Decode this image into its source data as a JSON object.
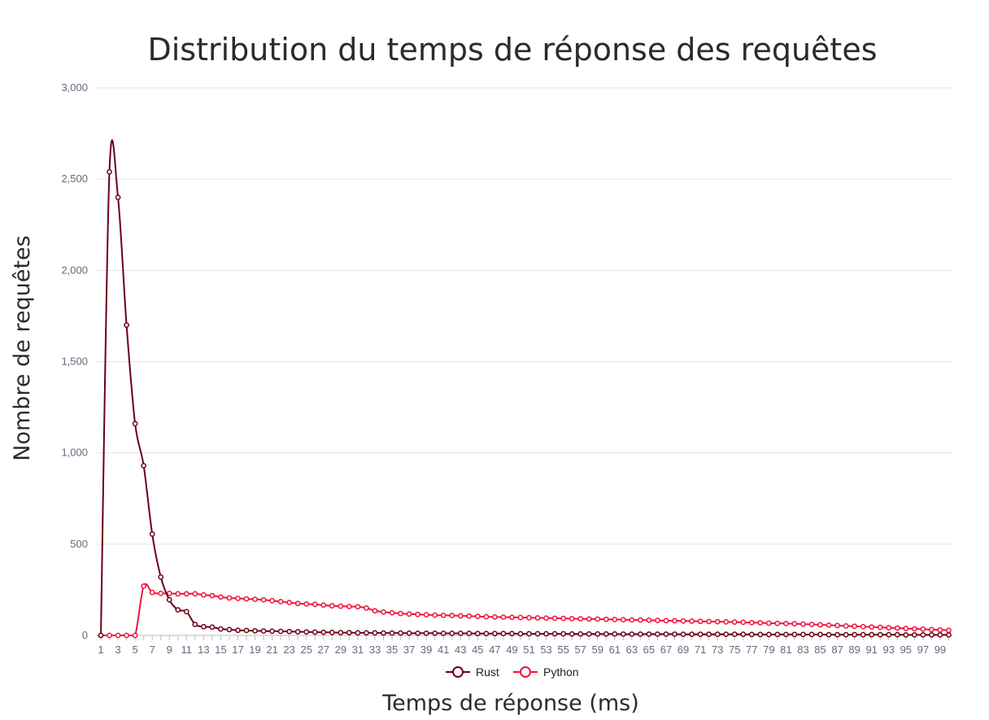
{
  "chart_data": {
    "type": "line",
    "title": "Distribution du temps de réponse des requêtes",
    "xlabel": "Temps de réponse (ms)",
    "ylabel": "Nombre de requêtes",
    "ylim": [
      0,
      3000
    ],
    "yticks": [
      "0",
      "500",
      "1,000",
      "1,500",
      "2,000",
      "2,500",
      "3,000"
    ],
    "x_start": 1,
    "x_end": 100,
    "x_label_every": 2,
    "grid": true,
    "legend_position": "bottom",
    "series": [
      {
        "name": "Rust",
        "color": "#6b0017",
        "values": [
          0,
          2540,
          2400,
          1700,
          1160,
          930,
          555,
          320,
          195,
          140,
          130,
          60,
          48,
          45,
          35,
          32,
          28,
          27,
          25,
          24,
          23,
          22,
          21,
          20,
          19,
          18,
          17,
          16,
          15,
          15,
          14,
          14,
          14,
          13,
          13,
          13,
          12,
          12,
          12,
          12,
          11,
          11,
          11,
          11,
          10,
          10,
          10,
          10,
          10,
          9,
          9,
          9,
          9,
          9,
          9,
          8,
          8,
          8,
          8,
          8,
          8,
          7,
          7,
          7,
          7,
          7,
          7,
          7,
          6,
          6,
          6,
          6,
          6,
          6,
          6,
          6,
          5,
          5,
          5,
          5,
          5,
          5,
          5,
          5,
          5,
          4,
          4,
          4,
          4,
          4,
          4,
          4,
          4,
          4,
          3,
          3,
          3,
          3,
          3,
          3
        ]
      },
      {
        "name": "Python",
        "color": "#f0123d",
        "values": [
          0,
          0,
          0,
          0,
          0,
          270,
          235,
          230,
          230,
          228,
          228,
          228,
          222,
          218,
          210,
          205,
          203,
          200,
          198,
          195,
          190,
          185,
          180,
          175,
          172,
          170,
          166,
          162,
          160,
          158,
          157,
          150,
          135,
          128,
          124,
          120,
          117,
          115,
          113,
          111,
          110,
          109,
          107,
          106,
          104,
          102,
          101,
          100,
          99,
          98,
          97,
          96,
          95,
          94,
          93,
          92,
          91,
          90,
          89,
          88,
          87,
          86,
          85,
          84,
          83,
          82,
          81,
          80,
          79,
          78,
          77,
          76,
          75,
          74,
          73,
          72,
          70,
          69,
          67,
          66,
          65,
          64,
          62,
          60,
          58,
          56,
          54,
          52,
          50,
          48,
          46,
          44,
          42,
          40,
          38,
          36,
          34,
          32,
          30,
          28
        ]
      }
    ]
  }
}
